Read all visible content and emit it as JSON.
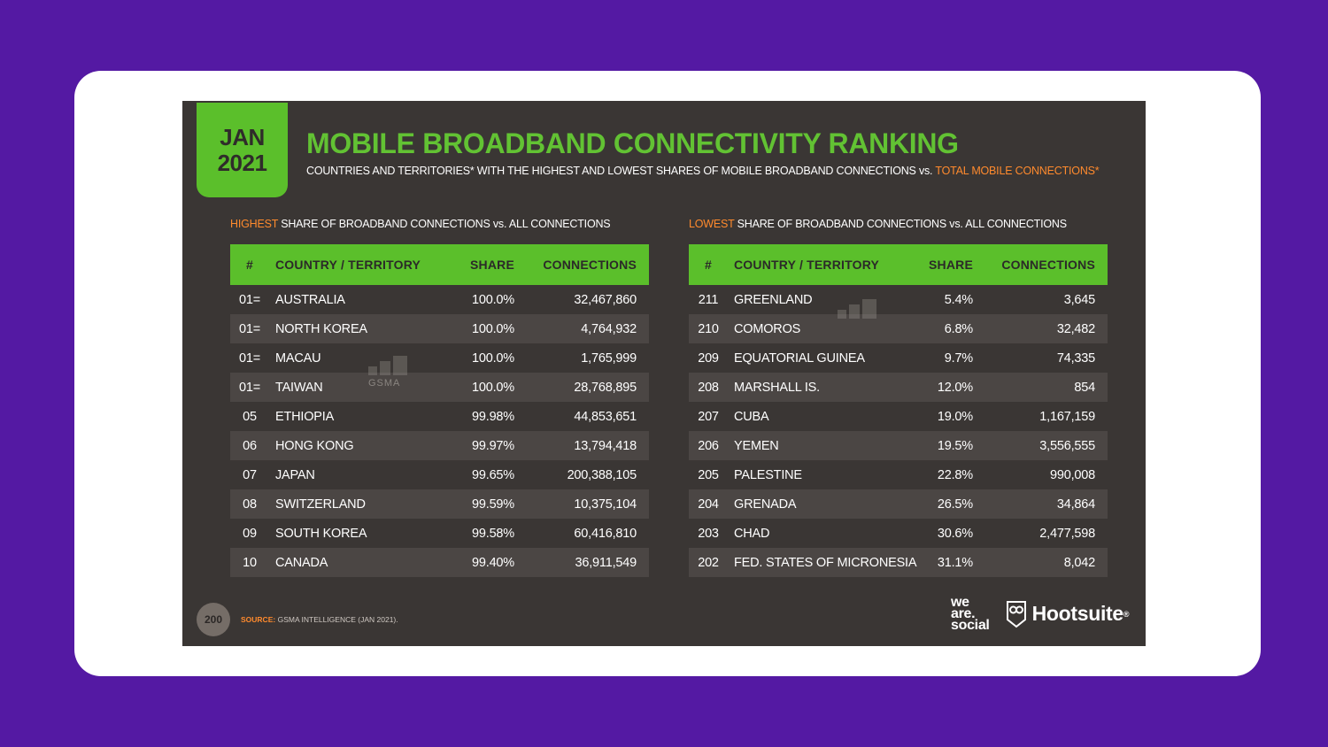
{
  "slide": {
    "date_month": "JAN",
    "date_year": "2021",
    "title": "MOBILE BROADBAND CONNECTIVITY RANKING",
    "subtitle_main": "COUNTRIES AND TERRITORIES* WITH THE HIGHEST AND LOWEST SHARES OF MOBILE BROADBAND CONNECTIONS vs. ",
    "subtitle_accent": "TOTAL MOBILE CONNECTIONS*",
    "page_number": "200",
    "source_label": "SOURCE:",
    "source_text": "GSMA INTELLIGENCE (JAN 2021).",
    "brand_we": "we",
    "brand_are": "are.",
    "brand_social": "social",
    "brand_hootsuite": "Hootsuite",
    "brand_reg": "®",
    "watermark_gsma": "GSMA",
    "colors": {
      "background": "#5419a3",
      "card": "#ffffff",
      "slide": "#3a3634",
      "green": "#5bbf2b",
      "orange": "#ff8a2d"
    }
  },
  "highest": {
    "label_accent": "HIGHEST",
    "label_rest": " SHARE OF BROADBAND CONNECTIONS vs. ALL CONNECTIONS",
    "headers": {
      "rank": "#",
      "name": "COUNTRY / TERRITORY",
      "share": "SHARE",
      "connections": "CONNECTIONS"
    },
    "rows": [
      {
        "rank": "01=",
        "name": "AUSTRALIA",
        "share": "100.0%",
        "connections": "32,467,860"
      },
      {
        "rank": "01=",
        "name": "NORTH KOREA",
        "share": "100.0%",
        "connections": "4,764,932"
      },
      {
        "rank": "01=",
        "name": "MACAU",
        "share": "100.0%",
        "connections": "1,765,999"
      },
      {
        "rank": "01=",
        "name": "TAIWAN",
        "share": "100.0%",
        "connections": "28,768,895"
      },
      {
        "rank": "05",
        "name": "ETHIOPIA",
        "share": "99.98%",
        "connections": "44,853,651"
      },
      {
        "rank": "06",
        "name": "HONG KONG",
        "share": "99.97%",
        "connections": "13,794,418"
      },
      {
        "rank": "07",
        "name": "JAPAN",
        "share": "99.65%",
        "connections": "200,388,105"
      },
      {
        "rank": "08",
        "name": "SWITZERLAND",
        "share": "99.59%",
        "connections": "10,375,104"
      },
      {
        "rank": "09",
        "name": "SOUTH KOREA",
        "share": "99.58%",
        "connections": "60,416,810"
      },
      {
        "rank": "10",
        "name": "CANADA",
        "share": "99.40%",
        "connections": "36,911,549"
      }
    ]
  },
  "lowest": {
    "label_accent": "LOWEST",
    "label_rest": " SHARE OF BROADBAND CONNECTIONS vs. ALL CONNECTIONS",
    "headers": {
      "rank": "#",
      "name": "COUNTRY / TERRITORY",
      "share": "SHARE",
      "connections": "CONNECTIONS"
    },
    "rows": [
      {
        "rank": "211",
        "name": "GREENLAND",
        "share": "5.4%",
        "connections": "3,645"
      },
      {
        "rank": "210",
        "name": "COMOROS",
        "share": "6.8%",
        "connections": "32,482"
      },
      {
        "rank": "209",
        "name": "EQUATORIAL GUINEA",
        "share": "9.7%",
        "connections": "74,335"
      },
      {
        "rank": "208",
        "name": "MARSHALL IS.",
        "share": "12.0%",
        "connections": "854"
      },
      {
        "rank": "207",
        "name": "CUBA",
        "share": "19.0%",
        "connections": "1,167,159"
      },
      {
        "rank": "206",
        "name": "YEMEN",
        "share": "19.5%",
        "connections": "3,556,555"
      },
      {
        "rank": "205",
        "name": "PALESTINE",
        "share": "22.8%",
        "connections": "990,008"
      },
      {
        "rank": "204",
        "name": "GRENADA",
        "share": "26.5%",
        "connections": "34,864"
      },
      {
        "rank": "203",
        "name": "CHAD",
        "share": "30.6%",
        "connections": "2,477,598"
      },
      {
        "rank": "202",
        "name": "FED. STATES OF MICRONESIA",
        "share": "31.1%",
        "connections": "8,042"
      }
    ]
  }
}
